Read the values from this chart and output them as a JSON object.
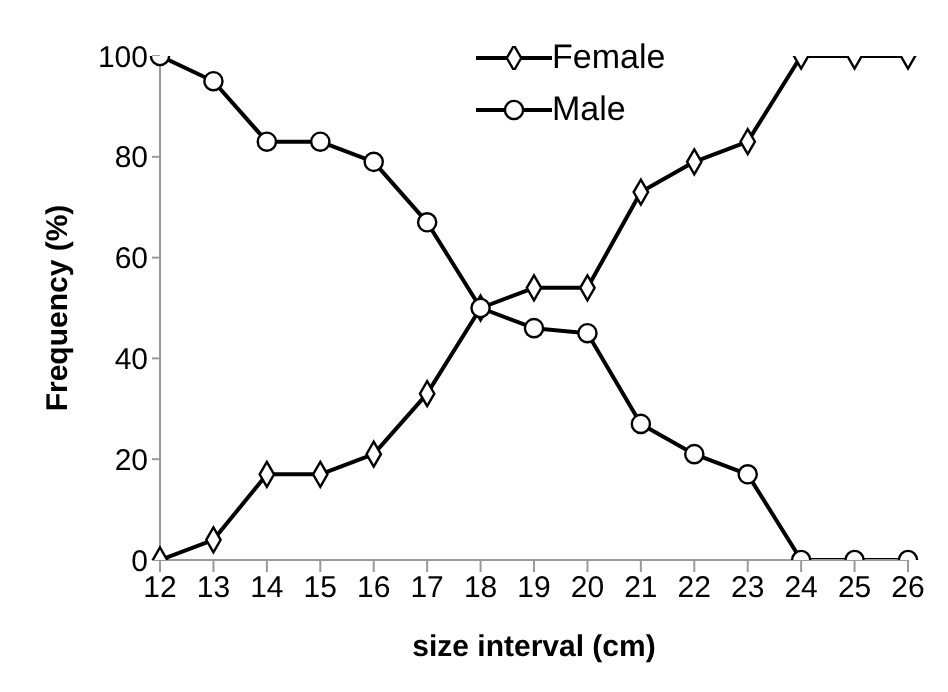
{
  "chart_data": {
    "type": "line",
    "xlabel": "size interval (cm)",
    "ylabel": "Frequency (%)",
    "categories": [
      "12",
      "13",
      "14",
      "15",
      "16",
      "17",
      "18",
      "19",
      "20",
      "21",
      "22",
      "23",
      "24",
      "25",
      "26"
    ],
    "series": [
      {
        "name": "Female",
        "color": "#000000",
        "marker": "diamond",
        "values": [
          0,
          4,
          17,
          17,
          21,
          33,
          50,
          54,
          54,
          73,
          79,
          83,
          100,
          100,
          100
        ]
      },
      {
        "name": "Male",
        "color": "#000000",
        "marker": "circle",
        "values": [
          100,
          95,
          83,
          83,
          79,
          67,
          50,
          46,
          45,
          27,
          21,
          17,
          0,
          0,
          0
        ]
      }
    ],
    "ylim": [
      0,
      100
    ],
    "yticks": [
      0,
      20,
      40,
      60,
      80,
      100
    ],
    "grid": false,
    "legend": "top"
  }
}
